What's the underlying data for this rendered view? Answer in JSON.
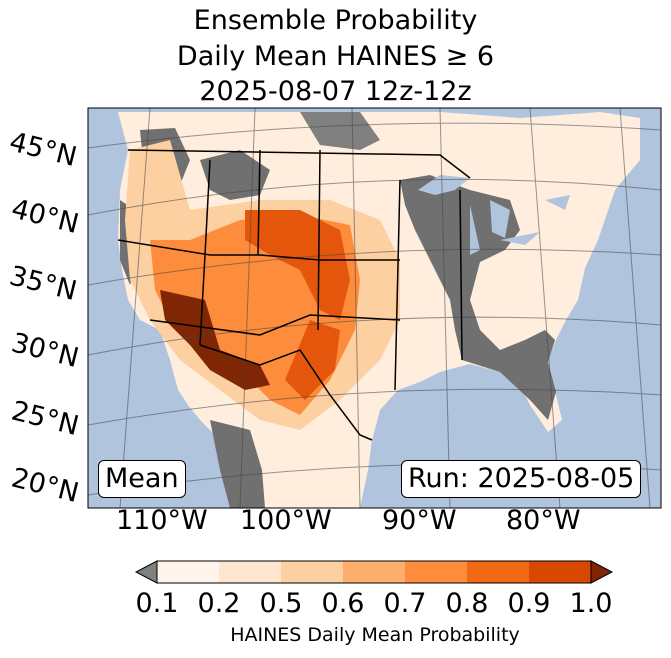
{
  "title": {
    "line1": "Ensemble Probability",
    "line2": "Daily Mean HAINES ≥ 6",
    "line3": "2025-08-07 12z-12z"
  },
  "map": {
    "region": "Continental United States",
    "latitude_labels": [
      "45°N",
      "40°N",
      "35°N",
      "30°N",
      "25°N",
      "20°N"
    ],
    "longitude_labels": [
      "110°W",
      "100°W",
      "90°W",
      "80°W"
    ],
    "stat_label": "Mean",
    "run_label": "Run: 2025-08-05",
    "colors": {
      "ocean": "#b0c4de",
      "below_threshold": "#808080"
    }
  },
  "colorbar": {
    "label": "HAINES Daily Mean Probability",
    "ticks": [
      "0.1",
      "0.2",
      "0.5",
      "0.6",
      "0.7",
      "0.8",
      "0.9",
      "1.0"
    ],
    "colors": [
      "#fff5eb",
      "#fee6ce",
      "#fdd0a2",
      "#fdae6b",
      "#fd8d3c",
      "#f16913",
      "#d94801",
      "#a63603",
      "#7f2704"
    ],
    "under_color": "#808080",
    "over_color": "#7f2704"
  }
}
